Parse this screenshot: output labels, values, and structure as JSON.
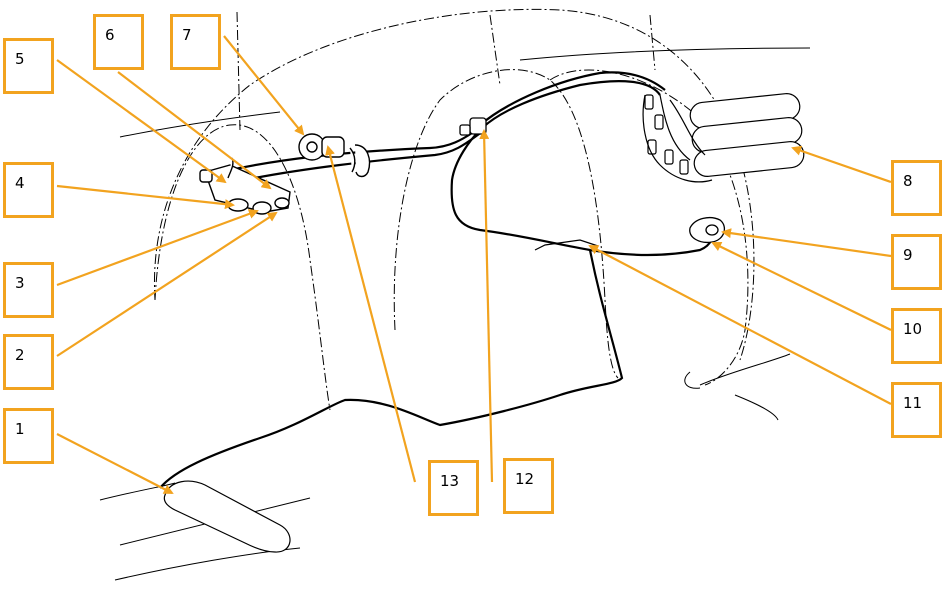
{
  "colors": {
    "callout": "#f2a31f",
    "drawing": "#000000",
    "background": "#ffffff"
  },
  "callouts": [
    {
      "id": "c1",
      "label": "1"
    },
    {
      "id": "c2",
      "label": "2"
    },
    {
      "id": "c3",
      "label": "3"
    },
    {
      "id": "c4",
      "label": "4"
    },
    {
      "id": "c5",
      "label": "5"
    },
    {
      "id": "c6",
      "label": "6"
    },
    {
      "id": "c7",
      "label": "7"
    },
    {
      "id": "c8",
      "label": "8"
    },
    {
      "id": "c9",
      "label": "9"
    },
    {
      "id": "c10",
      "label": "10"
    },
    {
      "id": "c11",
      "label": "11"
    },
    {
      "id": "c12",
      "label": "12"
    },
    {
      "id": "c13",
      "label": "13"
    }
  ]
}
